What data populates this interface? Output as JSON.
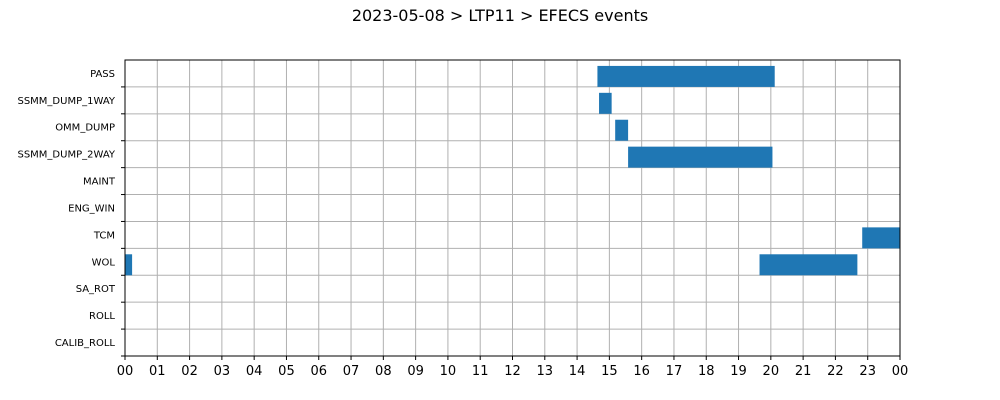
{
  "chart_data": {
    "type": "gantt",
    "title": "2023-05-08 > LTP11 > EFECS events",
    "x_tick_labels": [
      "00",
      "01",
      "02",
      "03",
      "04",
      "05",
      "06",
      "07",
      "08",
      "09",
      "10",
      "11",
      "12",
      "13",
      "14",
      "15",
      "16",
      "17",
      "18",
      "19",
      "20",
      "21",
      "22",
      "23",
      "00"
    ],
    "xlim_hours": [
      0,
      24
    ],
    "grid": true,
    "bar_color": "#1f77b4",
    "categories": [
      "PASS",
      "SSMM_DUMP_1WAY",
      "OMM_DUMP",
      "SSMM_DUMP_2WAY",
      "MAINT",
      "ENG_WIN",
      "TCM",
      "WOL",
      "SA_ROT",
      "ROLL",
      "CALIB_ROLL"
    ],
    "events": [
      {
        "category": "PASS",
        "start": 14.63,
        "end": 20.12
      },
      {
        "category": "SSMM_DUMP_1WAY",
        "start": 14.68,
        "end": 15.07
      },
      {
        "category": "OMM_DUMP",
        "start": 15.18,
        "end": 15.58
      },
      {
        "category": "SSMM_DUMP_2WAY",
        "start": 15.58,
        "end": 20.05
      },
      {
        "category": "TCM",
        "start": 22.83,
        "end": 24.0
      },
      {
        "category": "WOL",
        "start": 0.0,
        "end": 0.22
      },
      {
        "category": "WOL",
        "start": 19.65,
        "end": 22.68
      }
    ]
  }
}
